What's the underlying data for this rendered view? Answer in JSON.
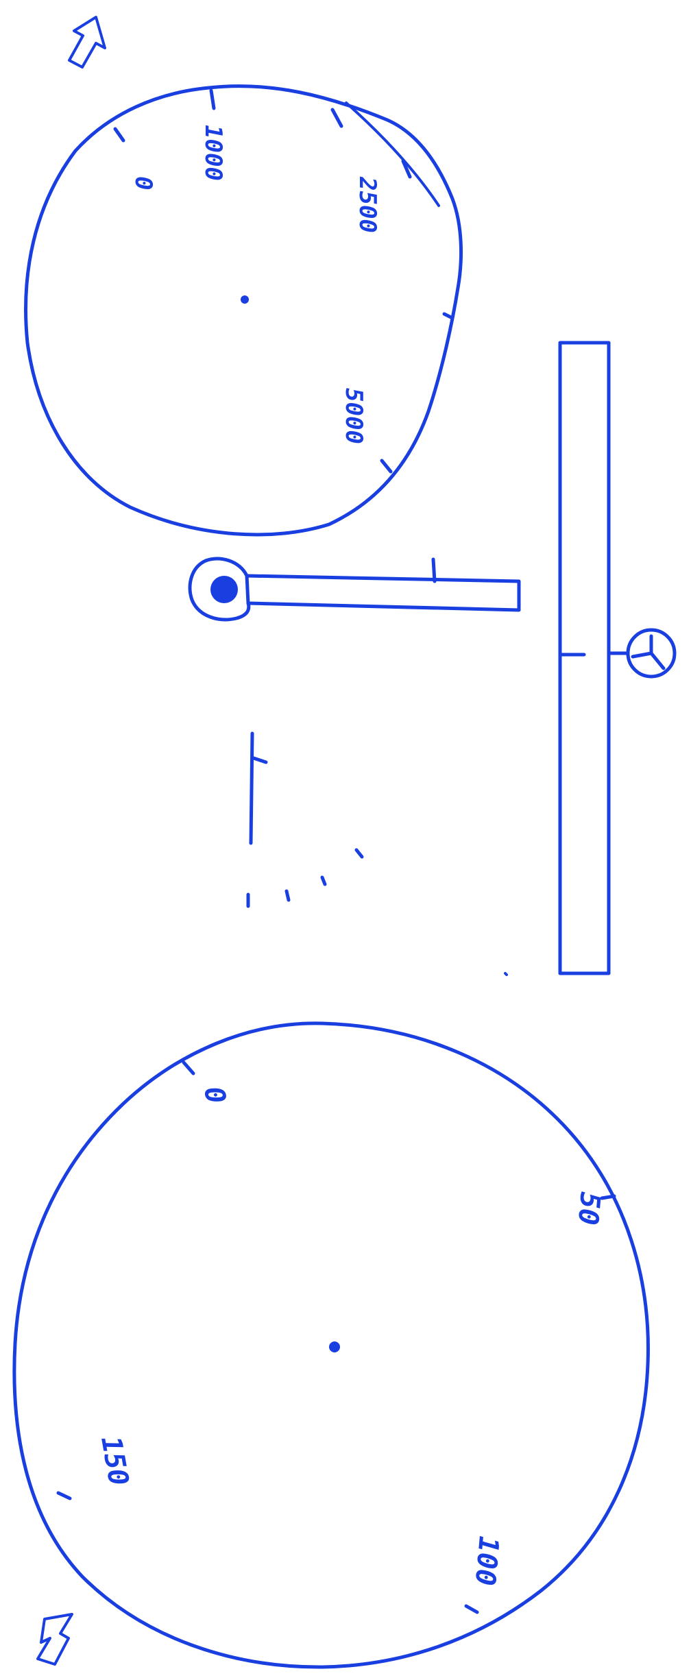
{
  "top_dial": {
    "labels": [
      "0",
      "1000",
      "2500",
      "5000"
    ]
  },
  "bottom_dial": {
    "labels": [
      "0",
      "50",
      "100",
      "150"
    ]
  },
  "colors": {
    "ink": "#1a3fe0",
    "paper": "#ffffff"
  },
  "icons": {
    "top_arrow": "arrow-up-icon",
    "bottom_arrow": "arrow-down-icon",
    "pivot": "pivot-mount-icon"
  }
}
